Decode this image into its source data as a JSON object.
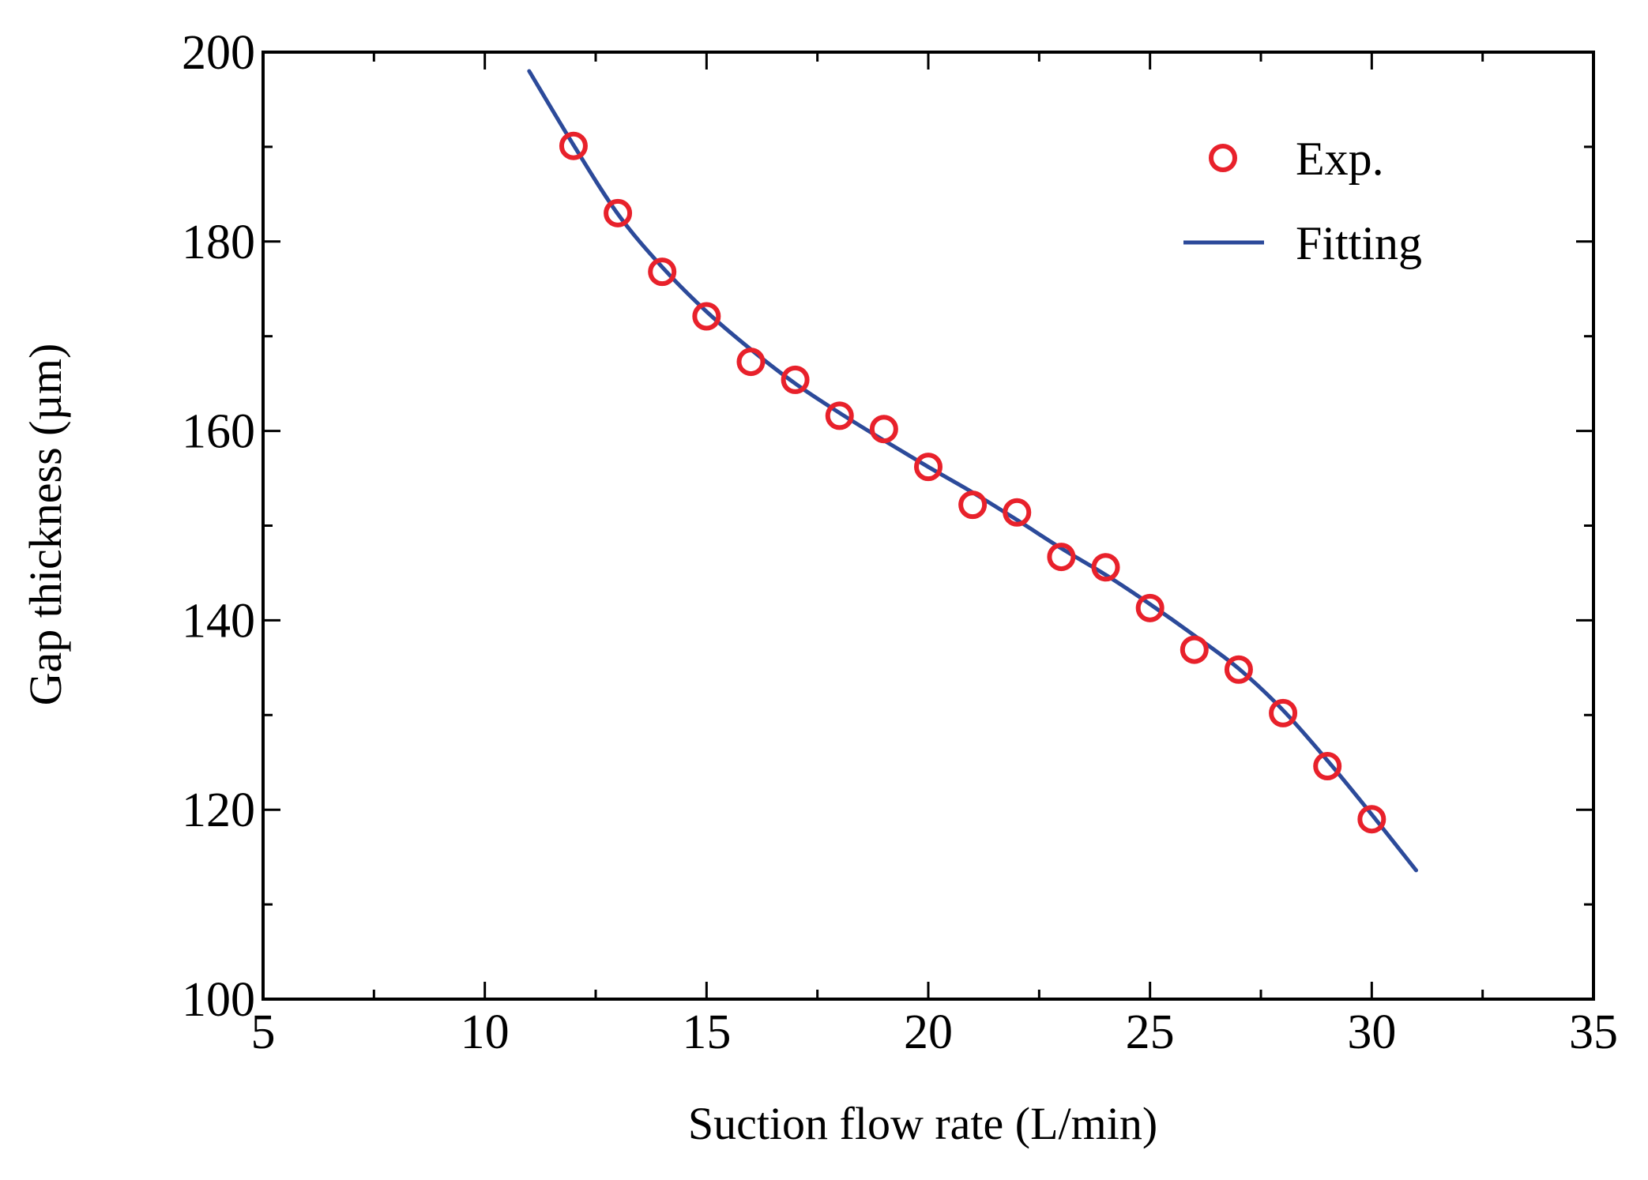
{
  "chart_data": {
    "type": "scatter",
    "title": "",
    "xlabel": "Suction flow rate (L/min)",
    "ylabel": "Gap thickness (µm)",
    "xlim": [
      5,
      35
    ],
    "ylim": [
      100,
      200
    ],
    "x_ticks": [
      5,
      10,
      15,
      20,
      25,
      30,
      35
    ],
    "x_tick_labels": [
      "5",
      "10",
      "15",
      "20",
      "25",
      "30",
      "35"
    ],
    "x_minor_step": 2.5,
    "y_ticks": [
      100,
      120,
      140,
      160,
      180,
      200
    ],
    "y_tick_labels": [
      "100",
      "120",
      "140",
      "160",
      "180",
      "200"
    ],
    "y_minor_step": 10,
    "grid": false,
    "legend_position": "top-right",
    "series": [
      {
        "name": "Exp.",
        "kind": "markers",
        "marker": "open-circle",
        "color": "#e8212b",
        "x": [
          12,
          13,
          14,
          15,
          16,
          17,
          18,
          19,
          20,
          21,
          22,
          23,
          24,
          25,
          26,
          27,
          28,
          29,
          30
        ],
        "y": [
          190.1,
          183,
          176.8,
          172.1,
          167.3,
          165.4,
          161.6,
          160.2,
          156.2,
          152.2,
          151.4,
          146.7,
          145.6,
          141.3,
          136.9,
          134.8,
          130.2,
          124.6,
          119.0
        ]
      },
      {
        "name": "Fitting",
        "kind": "line",
        "color": "#2c4a9a",
        "x": [
          11,
          12,
          13,
          14,
          15,
          16,
          17,
          18,
          19,
          20,
          21,
          22,
          23,
          24,
          25,
          26,
          27,
          28,
          29,
          30,
          31
        ],
        "y": [
          198.0,
          190.2,
          182.9,
          177.3,
          172.6,
          168.6,
          165.0,
          161.9,
          159.0,
          156.2,
          153.5,
          150.6,
          147.6,
          144.8,
          141.7,
          138.4,
          134.9,
          130.5,
          125.2,
          119.5,
          113.6
        ]
      }
    ]
  }
}
